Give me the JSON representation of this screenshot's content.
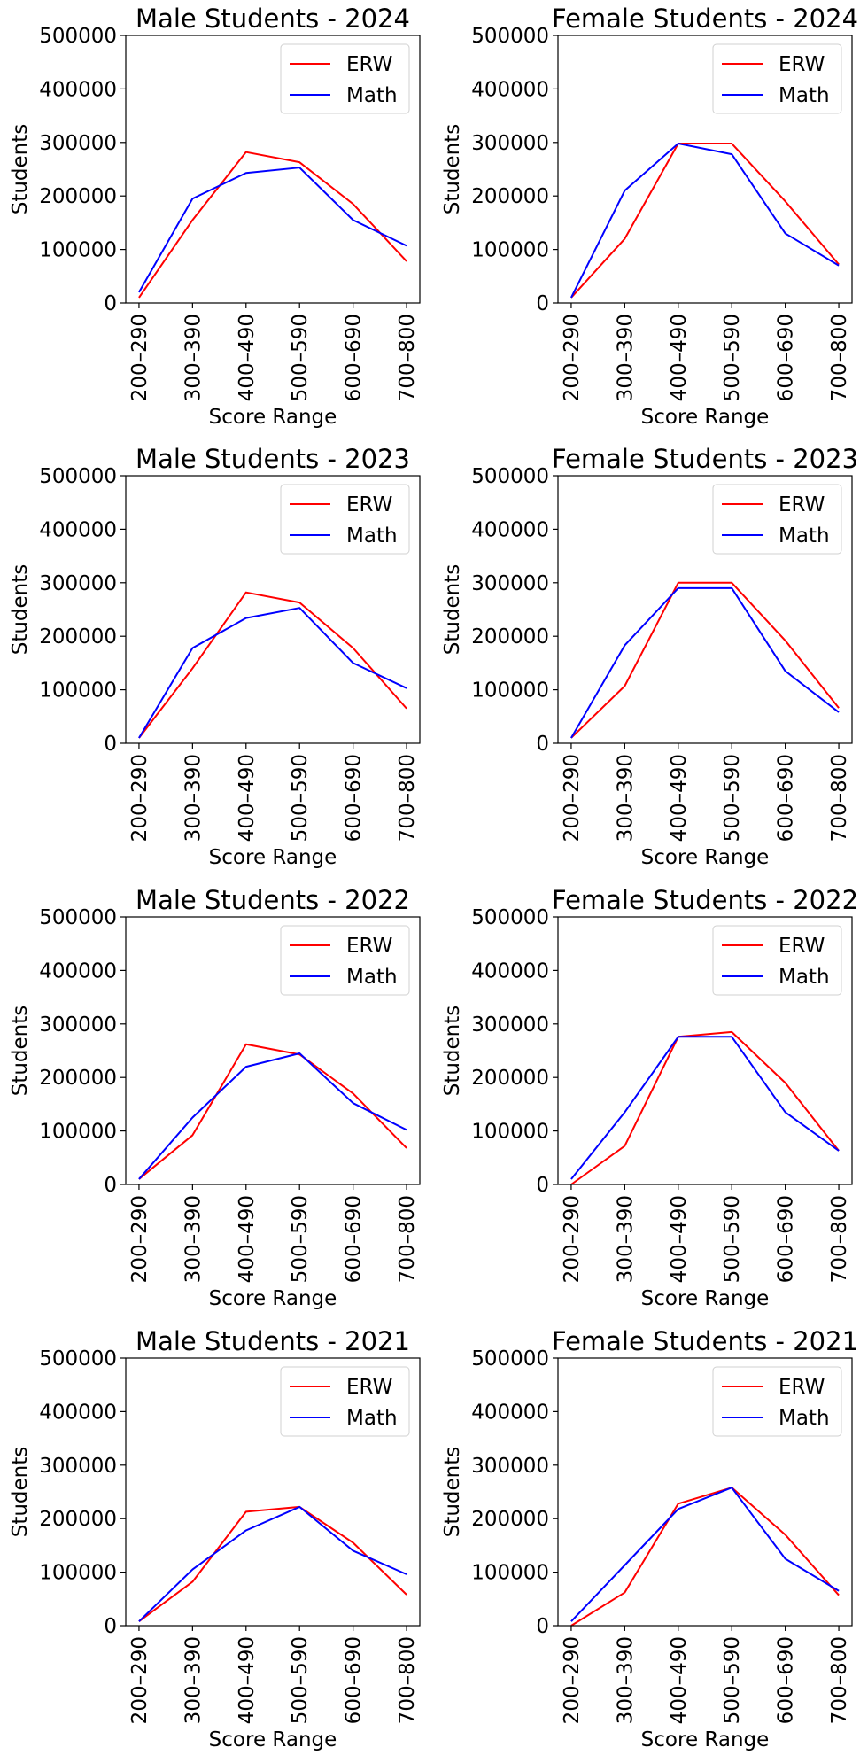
{
  "colors": {
    "ERW": "#ff0000",
    "Math": "#0000ff"
  },
  "chart_data": [
    {
      "type": "line",
      "title": "Male Students - 2024",
      "xlabel": "Score Range",
      "ylabel": "Students",
      "categories": [
        "200–290",
        "300–390",
        "400–490",
        "500–590",
        "600–690",
        "700–800"
      ],
      "ylim": [
        0,
        500000
      ],
      "yticks": [
        "0",
        "100000",
        "200000",
        "300000",
        "400000",
        "500000"
      ],
      "legend": "top-right",
      "grid": false,
      "series": [
        {
          "name": "ERW",
          "values": [
            10000,
            155000,
            282000,
            263000,
            185000,
            78000
          ]
        },
        {
          "name": "Math",
          "values": [
            20000,
            195000,
            243000,
            253000,
            155000,
            107000
          ]
        }
      ]
    },
    {
      "type": "line",
      "title": "Female Students - 2024",
      "xlabel": "Score Range",
      "ylabel": "Students",
      "categories": [
        "200–290",
        "300–390",
        "400–490",
        "500–590",
        "600–690",
        "700–800"
      ],
      "ylim": [
        0,
        500000
      ],
      "yticks": [
        "0",
        "100000",
        "200000",
        "300000",
        "400000",
        "500000"
      ],
      "legend": "top-right",
      "grid": false,
      "series": [
        {
          "name": "ERW",
          "values": [
            10000,
            120000,
            298000,
            298000,
            190000,
            72000
          ]
        },
        {
          "name": "Math",
          "values": [
            10000,
            210000,
            298000,
            278000,
            130000,
            70000
          ]
        }
      ]
    },
    {
      "type": "line",
      "title": "Male Students - 2023",
      "xlabel": "Score Range",
      "ylabel": "Students",
      "categories": [
        "200–290",
        "300–390",
        "400–490",
        "500–590",
        "600–690",
        "700–800"
      ],
      "ylim": [
        0,
        500000
      ],
      "yticks": [
        "0",
        "100000",
        "200000",
        "300000",
        "400000",
        "500000"
      ],
      "legend": "top-right",
      "grid": false,
      "series": [
        {
          "name": "ERW",
          "values": [
            10000,
            140000,
            282000,
            263000,
            178000,
            65000
          ]
        },
        {
          "name": "Math",
          "values": [
            10000,
            178000,
            234000,
            253000,
            150000,
            103000
          ]
        }
      ]
    },
    {
      "type": "line",
      "title": "Female Students - 2023",
      "xlabel": "Score Range",
      "ylabel": "Students",
      "categories": [
        "200–290",
        "300–390",
        "400–490",
        "500–590",
        "600–690",
        "700–800"
      ],
      "ylim": [
        0,
        500000
      ],
      "yticks": [
        "0",
        "100000",
        "200000",
        "300000",
        "400000",
        "500000"
      ],
      "legend": "top-right",
      "grid": false,
      "series": [
        {
          "name": "ERW",
          "values": [
            10000,
            107000,
            300000,
            300000,
            192000,
            66000
          ]
        },
        {
          "name": "Math",
          "values": [
            10000,
            183000,
            290000,
            290000,
            135000,
            58000
          ]
        }
      ]
    },
    {
      "type": "line",
      "title": "Male Students - 2022",
      "xlabel": "Score Range",
      "ylabel": "Students",
      "categories": [
        "200–290",
        "300–390",
        "400–490",
        "500–590",
        "600–690",
        "700–800"
      ],
      "ylim": [
        0,
        500000
      ],
      "yticks": [
        "0",
        "100000",
        "200000",
        "300000",
        "400000",
        "500000"
      ],
      "legend": "top-right",
      "grid": false,
      "series": [
        {
          "name": "ERW",
          "values": [
            10000,
            92000,
            262000,
            243000,
            170000,
            68000
          ]
        },
        {
          "name": "Math",
          "values": [
            10000,
            125000,
            220000,
            245000,
            152000,
            102000
          ]
        }
      ]
    },
    {
      "type": "line",
      "title": "Female Students - 2022",
      "xlabel": "Score Range",
      "ylabel": "Students",
      "categories": [
        "200–290",
        "300–390",
        "400–490",
        "500–590",
        "600–690",
        "700–800"
      ],
      "ylim": [
        0,
        500000
      ],
      "yticks": [
        "0",
        "100000",
        "200000",
        "300000",
        "400000",
        "500000"
      ],
      "legend": "top-right",
      "grid": false,
      "series": [
        {
          "name": "ERW",
          "values": [
            0,
            72000,
            276000,
            285000,
            190000,
            63000
          ]
        },
        {
          "name": "Math",
          "values": [
            10000,
            135000,
            276000,
            276000,
            135000,
            63000
          ]
        }
      ]
    },
    {
      "type": "line",
      "title": "Male Students - 2021",
      "xlabel": "Score Range",
      "ylabel": "Students",
      "categories": [
        "200–290",
        "300–390",
        "400–490",
        "500–590",
        "600–690",
        "700–800"
      ],
      "ylim": [
        0,
        500000
      ],
      "yticks": [
        "0",
        "100000",
        "200000",
        "300000",
        "400000",
        "500000"
      ],
      "legend": "top-right",
      "grid": false,
      "series": [
        {
          "name": "ERW",
          "values": [
            8000,
            82000,
            213000,
            222000,
            155000,
            58000
          ]
        },
        {
          "name": "Math",
          "values": [
            8000,
            105000,
            178000,
            222000,
            140000,
            96000
          ]
        }
      ]
    },
    {
      "type": "line",
      "title": "Female Students - 2021",
      "xlabel": "Score Range",
      "ylabel": "Students",
      "categories": [
        "200–290",
        "300–390",
        "400–490",
        "500–590",
        "600–690",
        "700–800"
      ],
      "ylim": [
        0,
        500000
      ],
      "yticks": [
        "0",
        "100000",
        "200000",
        "300000",
        "400000",
        "500000"
      ],
      "legend": "top-right",
      "grid": false,
      "series": [
        {
          "name": "ERW",
          "values": [
            0,
            62000,
            228000,
            258000,
            170000,
            57000
          ]
        },
        {
          "name": "Math",
          "values": [
            8000,
            113000,
            218000,
            258000,
            125000,
            65000
          ]
        }
      ]
    }
  ]
}
